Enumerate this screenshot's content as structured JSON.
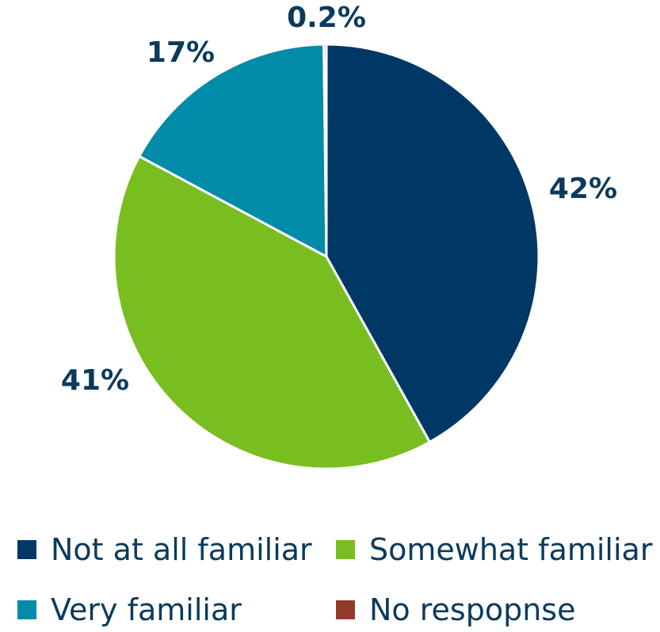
{
  "chart_data": {
    "type": "pie",
    "title": "",
    "slices": [
      {
        "label": "Not at all familiar",
        "value": 42,
        "display": "42%",
        "color": "#003865"
      },
      {
        "label": "Somewhat familiar",
        "value": 41,
        "display": "41%",
        "color": "#78be20"
      },
      {
        "label": "Very familiar",
        "value": 17,
        "display": "17%",
        "color": "#008ba8"
      },
      {
        "label": "No respopnse",
        "value": 0.2,
        "display": "0.2%",
        "color": "#953a2a"
      }
    ],
    "label_color": "#0a3a5c",
    "legend": {
      "position": "bottom",
      "items": [
        "Not at all familiar",
        "Somewhat familiar",
        "Very familiar",
        "No respopnse"
      ]
    }
  }
}
